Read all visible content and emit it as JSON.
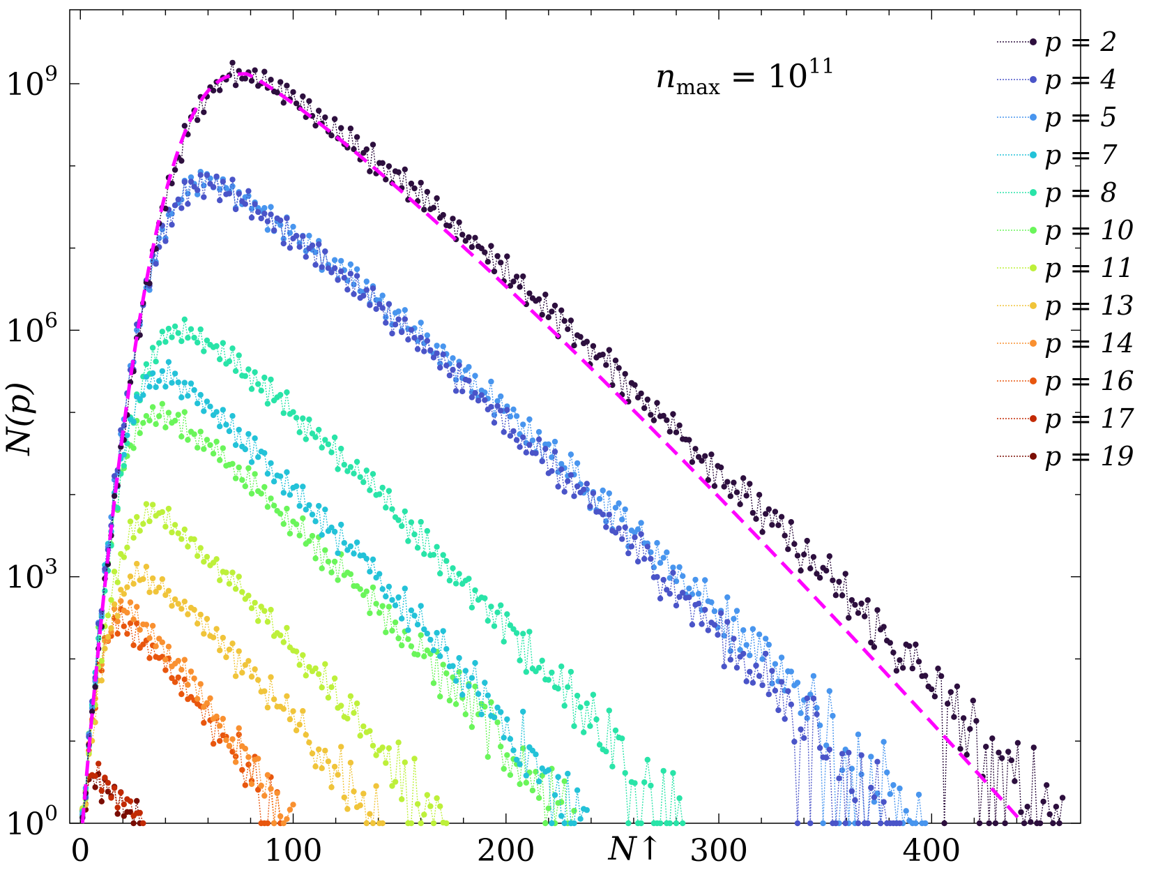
{
  "chart_data": {
    "type": "scatter",
    "title": "",
    "xlabel": "N↑",
    "ylabel": "N(p)",
    "x_range": [
      -5,
      470
    ],
    "y_scale": "log",
    "y_range_log10": [
      0,
      9.9
    ],
    "x_ticks": [
      0,
      100,
      200,
      300,
      400
    ],
    "x_tick_labels": [
      "0",
      "100",
      "200",
      "300",
      "400"
    ],
    "y_ticks_log10": [
      0,
      3,
      6,
      9
    ],
    "y_tick_labels": [
      {
        "base": "10",
        "exp": "0"
      },
      {
        "base": "10",
        "exp": "3"
      },
      {
        "base": "10",
        "exp": "6"
      },
      {
        "base": "10",
        "exp": "9"
      }
    ],
    "annotation": {
      "lhs": "n",
      "sub": "max",
      "rhs": " = 10",
      "sup": "11"
    },
    "legend_position": "top-right",
    "fit_curve": {
      "color": "#ff00ff",
      "style": "dashed",
      "peak_x": 78,
      "peak_log10": 9.12,
      "end_x": 443
    },
    "series": [
      {
        "name": "p = 2",
        "color": "#2d0f3e",
        "peak_x": 80,
        "peak_log10": 9.12,
        "end_x": 462
      },
      {
        "name": "p = 4",
        "color": "#4a54c8",
        "peak_x": 62,
        "peak_log10": 7.8,
        "end_x": 385
      },
      {
        "name": "p = 5",
        "color": "#4895ee",
        "peak_x": 62,
        "peak_log10": 7.82,
        "end_x": 398
      },
      {
        "name": "p = 7",
        "color": "#23c2d8",
        "peak_x": 40,
        "peak_log10": 5.45,
        "end_x": 238
      },
      {
        "name": "p = 8",
        "color": "#29e4a8",
        "peak_x": 50,
        "peak_log10": 6.0,
        "end_x": 284
      },
      {
        "name": "p = 10",
        "color": "#6af55a",
        "peak_x": 38,
        "peak_log10": 5.0,
        "end_x": 232
      },
      {
        "name": "p = 11",
        "color": "#bdf03a",
        "peak_x": 35,
        "peak_log10": 3.75,
        "end_x": 172
      },
      {
        "name": "p = 13",
        "color": "#f0c43a",
        "peak_x": 30,
        "peak_log10": 3.0,
        "end_x": 142
      },
      {
        "name": "p = 14",
        "color": "#f99030",
        "peak_x": 22,
        "peak_log10": 2.6,
        "end_x": 100
      },
      {
        "name": "p = 16",
        "color": "#e8560e",
        "peak_x": 20,
        "peak_log10": 2.45,
        "end_x": 95
      },
      {
        "name": "p = 17",
        "color": "#c22a04",
        "peak_x": 6,
        "peak_log10": 0.6,
        "end_x": 30
      },
      {
        "name": "p = 19",
        "color": "#7a0d03",
        "peak_x": 6,
        "peak_log10": 0.5,
        "end_x": 28
      }
    ]
  }
}
